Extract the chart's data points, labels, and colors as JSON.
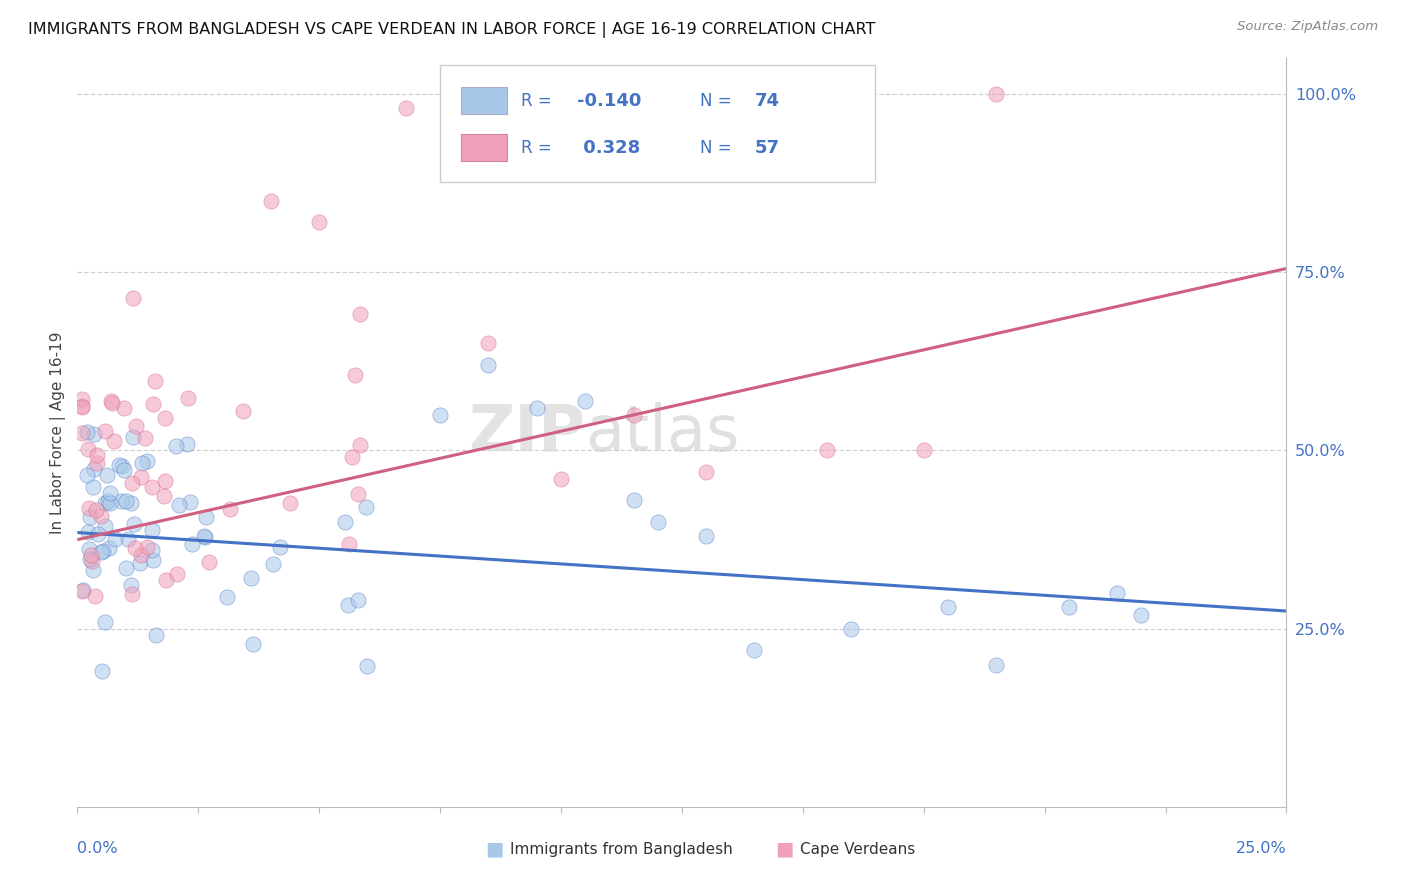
{
  "title": "IMMIGRANTS FROM BANGLADESH VS CAPE VERDEAN IN LABOR FORCE | AGE 16-19 CORRELATION CHART",
  "source": "Source: ZipAtlas.com",
  "ylabel": "In Labor Force | Age 16-19",
  "xlim": [
    0.0,
    0.25
  ],
  "ylim": [
    0.0,
    1.05
  ],
  "color_bangladesh": "#a8c8e8",
  "color_capeverdean": "#f0a0b8",
  "color_bangladesh_line": "#4472c4",
  "color_capeverdean_line": "#d06080",
  "background_color": "#ffffff",
  "grid_color": "#cccccc",
  "title_color": "#111111",
  "axis_label_color": "#4472c4",
  "legend_text_color": "#4472c4",
  "scatter_size": 120,
  "scatter_alpha": 0.55,
  "bang_line_x": [
    0.0,
    0.25
  ],
  "bang_line_y": [
    0.385,
    0.275
  ],
  "cape_line_x": [
    0.0,
    0.25
  ],
  "cape_line_y": [
    0.375,
    0.755
  ]
}
